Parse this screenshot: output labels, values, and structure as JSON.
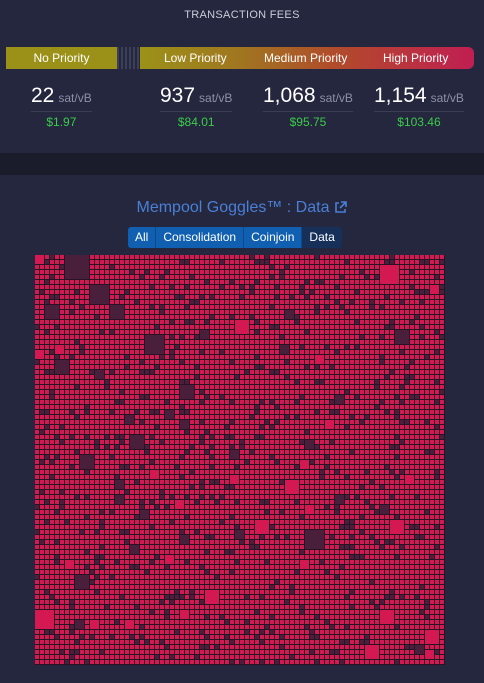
{
  "fees": {
    "title": "TRANSACTION FEES",
    "bands": {
      "no_priority": "No Priority",
      "low_priority": "Low Priority",
      "medium_priority": "Medium Priority",
      "high_priority": "High Priority"
    },
    "items": [
      {
        "rate": "22",
        "unit": "sat/vB",
        "usd": "$1.97"
      },
      {
        "rate": "937",
        "unit": "sat/vB",
        "usd": "$84.01"
      },
      {
        "rate": "1,068",
        "unit": "sat/vB",
        "usd": "$95.75"
      },
      {
        "rate": "1,154",
        "unit": "sat/vB",
        "usd": "$103.46"
      }
    ]
  },
  "goggles": {
    "title": "Mempool Goggles™ : Data",
    "link_icon": "external-link-icon",
    "tabs": [
      "All",
      "Consolidation",
      "Coinjoin",
      "Data"
    ],
    "active_tab": "Data"
  },
  "colors": {
    "accent_blue": "#4a7fd6",
    "fee_green": "#3bcc49",
    "tx_highlight": "#d31852",
    "tx_dim": "#4a1f3c"
  }
}
